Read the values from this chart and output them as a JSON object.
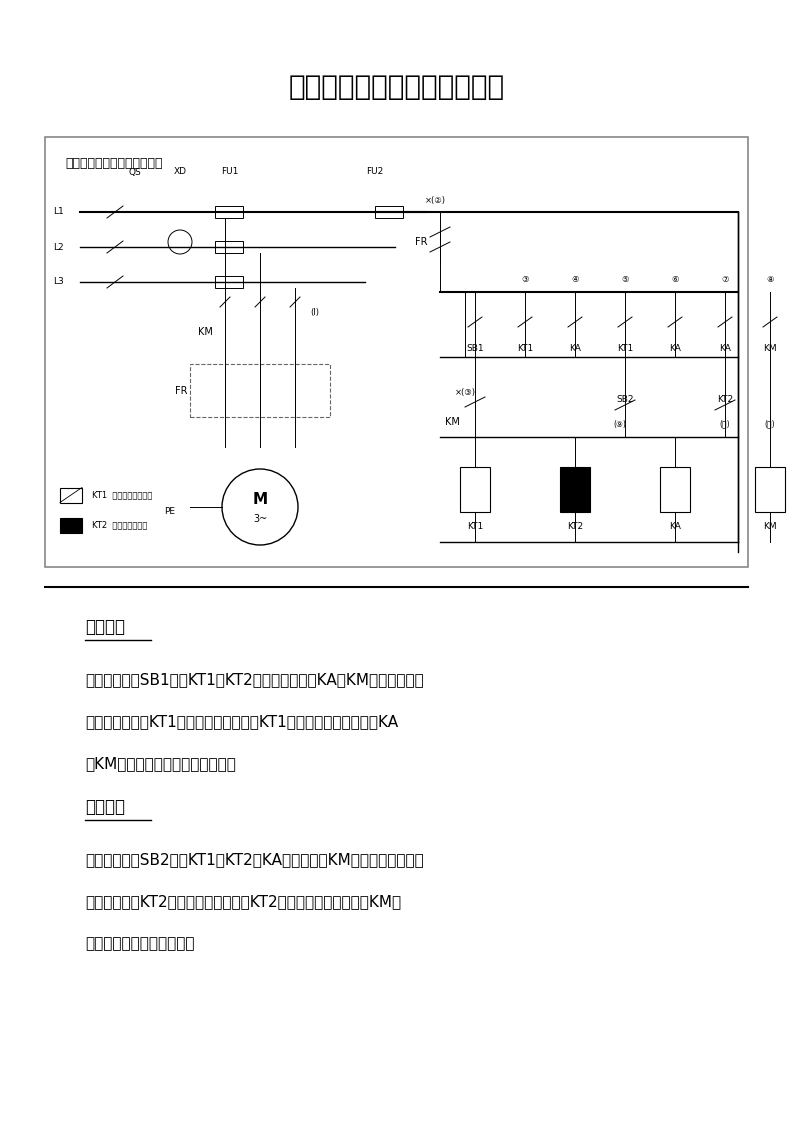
{
  "title": "延时启动、延时停止控制线路",
  "bg_color": "#ffffff",
  "page_width": 7.93,
  "page_height": 11.22,
  "circuit_subtitle": "延时启动、延时停止控制线路",
  "section1_title": "正常启动",
  "section1_text": [
    "按下启动按钮SB1后，KT1和KT2线圈得电吸合，KA和KM线圈不得电，",
    "电动机不运转，KT1延时触点延时几秒后KT1的延时常开触点闭合，KA",
    "和KM得电吸合，电动机开始运转。"
  ],
  "section2_title": "正常停止",
  "section2_text": [
    "按下停止按钮SB2后，KT1、KT2和KA线圈失电，KM线圈不失电，电动",
    "机继续运转，KT2延时触点延时几秒后KT2的延时断开触点断开，KM线",
    "圈失电，电动机停止运转。"
  ],
  "legend1_text": "KT1  通电延时常开断路",
  "legend2_text": "KT2  断电延时继电器"
}
